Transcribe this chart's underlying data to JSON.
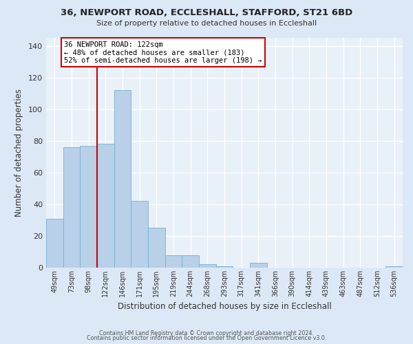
{
  "title1": "36, NEWPORT ROAD, ECCLESHALL, STAFFORD, ST21 6BD",
  "title2": "Size of property relative to detached houses in Eccleshall",
  "xlabel": "Distribution of detached houses by size in Eccleshall",
  "ylabel": "Number of detached properties",
  "bar_labels": [
    "49sqm",
    "73sqm",
    "98sqm",
    "122sqm",
    "146sqm",
    "171sqm",
    "195sqm",
    "219sqm",
    "244sqm",
    "268sqm",
    "293sqm",
    "317sqm",
    "341sqm",
    "366sqm",
    "390sqm",
    "414sqm",
    "439sqm",
    "463sqm",
    "487sqm",
    "512sqm",
    "536sqm"
  ],
  "bar_values": [
    31,
    76,
    77,
    78,
    112,
    42,
    25,
    8,
    8,
    2,
    1,
    0,
    3,
    0,
    0,
    0,
    0,
    0,
    0,
    0,
    1
  ],
  "bar_color": "#b8d0e8",
  "bar_edge_color": "#7aafd4",
  "vline_index": 3,
  "vline_color": "#cc0000",
  "annotation_text": "36 NEWPORT ROAD: 122sqm\n← 48% of detached houses are smaller (183)\n52% of semi-detached houses are larger (198) →",
  "annotation_box_color": "#ffffff",
  "annotation_box_edge_color": "#cc0000",
  "ylim": [
    0,
    145
  ],
  "yticks": [
    0,
    20,
    40,
    60,
    80,
    100,
    120,
    140
  ],
  "bg_color": "#dce8f5",
  "plot_bg_color": "#e8f0f8",
  "grid_color": "#ffffff",
  "footer1": "Contains HM Land Registry data © Crown copyright and database right 2024.",
  "footer2": "Contains public sector information licensed under the Open Government Licence v3.0."
}
